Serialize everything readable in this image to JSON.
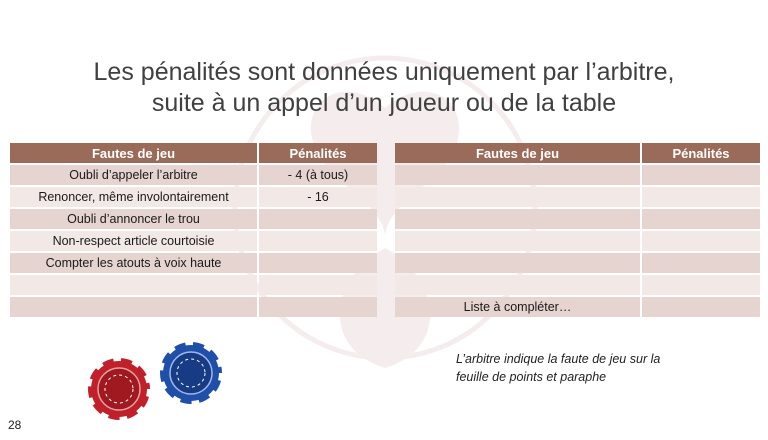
{
  "slide": {
    "title_line1": "Les pénalités sont données uniquement par l’arbitre,",
    "title_line2": "suite à un appel d’un joueur ou de la table",
    "page_number": "28"
  },
  "colors": {
    "header_bg": "#9b6b5a",
    "row_even": "#e6d4d0",
    "row_odd": "#f2e8e6",
    "chip_red": "#c0202a",
    "chip_blue": "#1f4fa8"
  },
  "left_table": {
    "headers": [
      "Fautes de jeu",
      "Pénalités"
    ],
    "rows": [
      [
        "Oubli d’appeler l’arbitre",
        "- 4 (à tous)"
      ],
      [
        "Renoncer, même involontairement",
        "- 16"
      ],
      [
        "Oubli d’annoncer le trou",
        ""
      ],
      [
        "Non-respect article courtoisie",
        ""
      ],
      [
        "Compter les atouts à voix haute",
        ""
      ],
      [
        "",
        ""
      ],
      [
        "",
        ""
      ]
    ]
  },
  "right_table": {
    "headers": [
      "Fautes de jeu",
      "Pénalités"
    ],
    "rows": [
      [
        "",
        ""
      ],
      [
        "",
        ""
      ],
      [
        "",
        ""
      ],
      [
        "",
        ""
      ],
      [
        "",
        ""
      ],
      [
        "",
        ""
      ],
      [
        "Liste à compléter…",
        ""
      ]
    ]
  },
  "note": {
    "line1": "L’arbitre indique la faute de jeu sur la",
    "line2": "feuille de points et paraphe"
  },
  "icons": {
    "red_chip": "poker-chip-icon",
    "blue_chip": "poker-chip-icon",
    "watermark": "club-logo-watermark"
  }
}
